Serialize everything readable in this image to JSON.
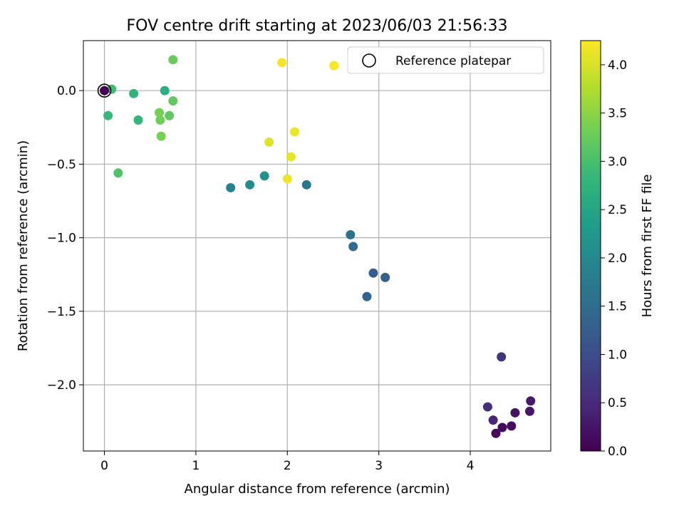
{
  "chart_data": {
    "type": "scatter",
    "title": "FOV centre drift starting at 2023/06/03 21:56:33",
    "xlabel": "Angular distance from reference (arcmin)",
    "ylabel": "Rotation from reference (arcmin)",
    "xlim": [
      -0.23,
      4.88
    ],
    "ylim": [
      -2.45,
      0.34
    ],
    "x_ticks": [
      0,
      1,
      2,
      3,
      4
    ],
    "y_ticks": [
      0.0,
      -0.5,
      -1.0,
      -1.5,
      -2.0
    ],
    "x_tick_labels": [
      "0",
      "1",
      "2",
      "3",
      "4"
    ],
    "y_tick_labels": [
      "0.0",
      "−0.5",
      "−1.0",
      "−1.5",
      "−2.0"
    ],
    "grid": true,
    "legend": {
      "location": "upper right",
      "entries": [
        "Reference platepar"
      ]
    },
    "reference_marker": {
      "x": 0.0,
      "y": 0.0,
      "label": "Reference platepar",
      "style": "hollow circle"
    },
    "colorbar": {
      "label": "Hours from first FF file",
      "colormap": "viridis",
      "range": [
        0.0,
        4.25
      ],
      "ticks": [
        0.0,
        0.5,
        1.0,
        1.5,
        2.0,
        2.5,
        3.0,
        3.5,
        4.0
      ],
      "tick_labels": [
        "0.0",
        "0.5",
        "1.0",
        "1.5",
        "2.0",
        "2.5",
        "3.0",
        "3.5",
        "4.0"
      ]
    },
    "colormap_stops": [
      "#440154",
      "#482878",
      "#3e4989",
      "#31688e",
      "#26828e",
      "#1f9e89",
      "#35b779",
      "#6ece58",
      "#b5de2b",
      "#fde725"
    ],
    "points": [
      {
        "x": 4.28,
        "y": -2.33,
        "t": 0.05
      },
      {
        "x": 4.35,
        "y": -2.29,
        "t": 0.1
      },
      {
        "x": 4.45,
        "y": -2.28,
        "t": 0.15
      },
      {
        "x": 4.49,
        "y": -2.19,
        "t": 0.2
      },
      {
        "x": 4.65,
        "y": -2.18,
        "t": 0.25
      },
      {
        "x": 4.66,
        "y": -2.11,
        "t": 0.3
      },
      {
        "x": 4.25,
        "y": -2.24,
        "t": 0.45
      },
      {
        "x": 4.19,
        "y": -2.15,
        "t": 0.55
      },
      {
        "x": 4.34,
        "y": -1.81,
        "t": 0.65
      },
      {
        "x": 2.94,
        "y": -1.24,
        "t": 1.25
      },
      {
        "x": 3.07,
        "y": -1.27,
        "t": 1.3
      },
      {
        "x": 2.87,
        "y": -1.4,
        "t": 1.35
      },
      {
        "x": 2.72,
        "y": -1.06,
        "t": 1.5
      },
      {
        "x": 2.69,
        "y": -0.98,
        "t": 1.6
      },
      {
        "x": 2.21,
        "y": -0.64,
        "t": 1.7
      },
      {
        "x": 1.38,
        "y": -0.66,
        "t": 1.9
      },
      {
        "x": 1.59,
        "y": -0.64,
        "t": 2.05
      },
      {
        "x": 1.75,
        "y": -0.58,
        "t": 2.15
      },
      {
        "x": 0.66,
        "y": 0.0,
        "t": 2.65
      },
      {
        "x": 0.32,
        "y": -0.02,
        "t": 2.75
      },
      {
        "x": 0.37,
        "y": -0.2,
        "t": 2.8
      },
      {
        "x": 0.04,
        "y": -0.17,
        "t": 2.85
      },
      {
        "x": 0.08,
        "y": 0.01,
        "t": 2.9
      },
      {
        "x": 0.15,
        "y": -0.56,
        "t": 3.05
      },
      {
        "x": 0.75,
        "y": -0.07,
        "t": 3.2
      },
      {
        "x": 0.71,
        "y": -0.17,
        "t": 3.2
      },
      {
        "x": 0.75,
        "y": 0.21,
        "t": 3.25
      },
      {
        "x": 0.61,
        "y": -0.2,
        "t": 3.3
      },
      {
        "x": 0.6,
        "y": -0.15,
        "t": 3.35
      },
      {
        "x": 0.62,
        "y": -0.31,
        "t": 3.35
      },
      {
        "x": 1.8,
        "y": -0.35,
        "t": 4.05
      },
      {
        "x": 2.04,
        "y": -0.45,
        "t": 4.1
      },
      {
        "x": 2.08,
        "y": -0.28,
        "t": 4.12
      },
      {
        "x": 2.0,
        "y": -0.6,
        "t": 4.15
      },
      {
        "x": 1.94,
        "y": 0.19,
        "t": 4.18
      },
      {
        "x": 2.51,
        "y": 0.17,
        "t": 4.22
      },
      {
        "x": 0.0,
        "y": 0.0,
        "t": 0.0
      }
    ]
  }
}
